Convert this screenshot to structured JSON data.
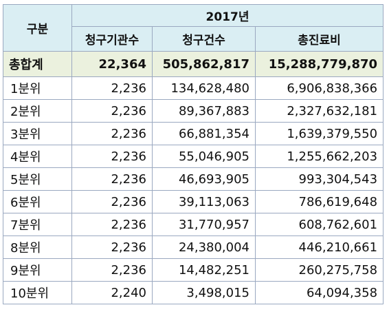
{
  "header": {
    "category": "구분",
    "year": "2017년",
    "columns": [
      "청구기관수",
      "청구건수",
      "총진료비"
    ]
  },
  "total": {
    "label": "총합계",
    "values": [
      "22,364",
      "505,862,817",
      "15,288,779,870"
    ]
  },
  "rows": [
    {
      "label": "1분위",
      "values": [
        "2,236",
        "134,628,480",
        "6,906,838,366"
      ]
    },
    {
      "label": "2분위",
      "values": [
        "2,236",
        "89,367,883",
        "2,327,632,181"
      ]
    },
    {
      "label": "3분위",
      "values": [
        "2,236",
        "66,881,354",
        "1,639,379,550"
      ]
    },
    {
      "label": "4분위",
      "values": [
        "2,236",
        "55,046,905",
        "1,255,662,203"
      ]
    },
    {
      "label": "5분위",
      "values": [
        "2,236",
        "46,693,905",
        "993,304,543"
      ]
    },
    {
      "label": "6분위",
      "values": [
        "2,236",
        "39,113,063",
        "786,619,648"
      ]
    },
    {
      "label": "7분위",
      "values": [
        "2,236",
        "31,770,957",
        "608,762,601"
      ]
    },
    {
      "label": "8분위",
      "values": [
        "2,236",
        "24,380,004",
        "446,210,661"
      ]
    },
    {
      "label": "9분위",
      "values": [
        "2,236",
        "14,482,251",
        "260,275,758"
      ]
    },
    {
      "label": "10분위",
      "values": [
        "2,240",
        "3,498,015",
        "64,094,358"
      ]
    }
  ]
}
